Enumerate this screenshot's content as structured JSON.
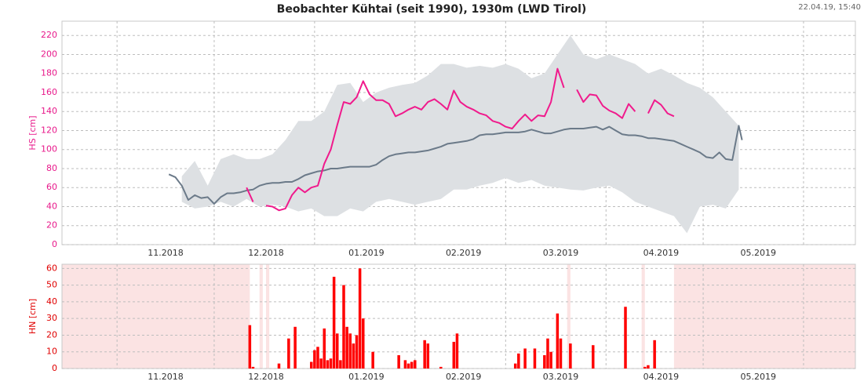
{
  "chart_data": [
    {
      "type": "line",
      "title": "Beobachter Kühtai (seit 1990), 1930m (LWD Tirol)",
      "timestamp": "22.04.19, 15:40",
      "ylabel": "HS [cm]",
      "axis_color": "#e8198b",
      "xlim": [
        -17,
        228
      ],
      "xticks": [
        {
          "value": 15,
          "label": "11.2018"
        },
        {
          "value": 46,
          "label": "12.2018"
        },
        {
          "value": 77,
          "label": "01.2019"
        },
        {
          "value": 107,
          "label": "02.2019"
        },
        {
          "value": 137,
          "label": "03.2019"
        },
        {
          "value": 168,
          "label": "04.2019"
        },
        {
          "value": 198,
          "label": "05.2019"
        }
      ],
      "xgrid": [
        0,
        30,
        61,
        92,
        120,
        151,
        181,
        212
      ],
      "ylim": [
        0,
        235
      ],
      "yticks": [
        0,
        20,
        40,
        60,
        80,
        100,
        120,
        140,
        160,
        180,
        200,
        220
      ],
      "grid": true,
      "band": {
        "color": "#dde0e3",
        "x": [
          20,
          24,
          28,
          32,
          36,
          40,
          44,
          48,
          52,
          56,
          60,
          64,
          68,
          72,
          76,
          80,
          84,
          88,
          92,
          96,
          100,
          104,
          108,
          112,
          116,
          120,
          124,
          128,
          132,
          136,
          140,
          144,
          148,
          152,
          156,
          160,
          164,
          168,
          172,
          176,
          180,
          184,
          188,
          192
        ],
        "upper": [
          72,
          88,
          62,
          90,
          95,
          90,
          90,
          95,
          110,
          130,
          130,
          140,
          168,
          170,
          150,
          160,
          165,
          168,
          170,
          178,
          190,
          190,
          186,
          188,
          186,
          190,
          185,
          175,
          180,
          200,
          220,
          200,
          195,
          200,
          195,
          190,
          180,
          185,
          178,
          170,
          165,
          155,
          140,
          125
        ],
        "lower": [
          45,
          38,
          40,
          45,
          40,
          48,
          40,
          42,
          40,
          35,
          38,
          30,
          30,
          38,
          35,
          45,
          48,
          45,
          42,
          45,
          48,
          58,
          58,
          62,
          65,
          70,
          65,
          68,
          62,
          60,
          58,
          57,
          60,
          62,
          55,
          45,
          40,
          35,
          30,
          12,
          40,
          42,
          38,
          58
        ]
      },
      "series": [
        {
          "color": "#6b7a89",
          "x": [
            16,
            18,
            20,
            22,
            24,
            26,
            28,
            30,
            32,
            34,
            36,
            38,
            40,
            42,
            44,
            46,
            48,
            50,
            52,
            54,
            56,
            58,
            60,
            62,
            64,
            66,
            68,
            70,
            72,
            74,
            76,
            78,
            80,
            82,
            84,
            86,
            88,
            90,
            92,
            94,
            96,
            98,
            100,
            102,
            104,
            106,
            108,
            110,
            112,
            114,
            116,
            118,
            120,
            122,
            124,
            126,
            128,
            130,
            132,
            134,
            136,
            138,
            140,
            142,
            144,
            146,
            148,
            150,
            152,
            154,
            156,
            158,
            160,
            162,
            164,
            166,
            168,
            170,
            172,
            174,
            176,
            178,
            180,
            182,
            184,
            186,
            188,
            190,
            192,
            193
          ],
          "values": [
            74,
            71,
            62,
            47,
            52,
            49,
            50,
            43,
            50,
            54,
            54,
            55,
            57,
            58,
            62,
            64,
            65,
            65,
            66,
            66,
            69,
            73,
            75,
            77,
            78,
            80,
            80,
            81,
            82,
            82,
            82,
            82,
            84,
            89,
            93,
            95,
            96,
            97,
            97,
            98,
            99,
            101,
            103,
            106,
            107,
            108,
            109,
            111,
            115,
            116,
            116,
            117,
            118,
            118,
            118,
            119,
            121,
            119,
            117,
            117,
            119,
            121,
            122,
            122,
            122,
            123,
            124,
            121,
            124,
            120,
            116,
            115,
            115,
            114,
            112,
            112,
            111,
            110,
            109,
            106,
            103,
            100,
            97,
            92,
            91,
            97,
            90,
            89,
            125,
            110
          ]
        },
        {
          "color": "#f01a8c",
          "x": [
            40,
            42,
            44,
            46,
            48,
            50,
            52,
            54,
            56,
            58,
            60,
            62,
            64,
            66,
            68,
            70,
            72,
            74,
            76,
            78,
            80,
            82,
            84,
            86,
            88,
            90,
            92,
            94,
            96,
            98,
            100,
            102,
            104,
            106,
            108,
            110,
            112,
            114,
            116,
            118,
            120,
            122,
            124,
            126,
            128,
            130,
            132,
            134,
            136,
            138,
            140,
            142,
            144,
            146,
            148,
            150,
            152,
            154,
            156,
            158,
            160,
            162,
            164,
            166,
            168,
            170,
            172
          ],
          "values": [
            60,
            45,
            null,
            41,
            40,
            36,
            38,
            52,
            60,
            55,
            60,
            62,
            85,
            100,
            126,
            150,
            148,
            155,
            172,
            158,
            152,
            152,
            148,
            135,
            138,
            142,
            145,
            142,
            150,
            153,
            148,
            142,
            162,
            150,
            145,
            142,
            138,
            136,
            130,
            128,
            124,
            122,
            130,
            137,
            130,
            136,
            135,
            150,
            185,
            165,
            null,
            163,
            150,
            158,
            157,
            146,
            141,
            138,
            133,
            148,
            140,
            null,
            138,
            152,
            147,
            138,
            135
          ]
        }
      ]
    },
    {
      "type": "bar",
      "ylabel": "HN [cm]",
      "axis_color": "#e00000",
      "color": "#ff0000",
      "xlim": [
        -17,
        228
      ],
      "xticks": [
        {
          "value": 15,
          "label": "11.2018"
        },
        {
          "value": 46,
          "label": "12.2018"
        },
        {
          "value": 77,
          "label": "01.2019"
        },
        {
          "value": 107,
          "label": "02.2019"
        },
        {
          "value": 137,
          "label": "03.2019"
        },
        {
          "value": 168,
          "label": "04.2019"
        },
        {
          "value": 198,
          "label": "05.2019"
        }
      ],
      "xgrid": [
        0,
        30,
        61,
        92,
        120,
        151,
        181,
        212
      ],
      "ylim": [
        0,
        62.5
      ],
      "yticks": [
        0,
        10,
        20,
        30,
        40,
        50,
        60
      ],
      "grid": true,
      "nodata_color": "#fbe3e3",
      "nodata": [
        [
          -17,
          41
        ],
        [
          44,
          45
        ],
        [
          46,
          47
        ],
        [
          139,
          140
        ],
        [
          162,
          163
        ],
        [
          172,
          228
        ]
      ],
      "x": [
        41,
        42,
        50,
        53,
        55,
        60,
        61,
        62,
        63,
        64,
        65,
        66,
        67,
        68,
        69,
        70,
        71,
        72,
        73,
        74,
        75,
        76,
        79,
        87,
        89,
        90,
        91,
        92,
        95,
        96,
        100,
        104,
        105,
        123,
        124,
        126,
        129,
        132,
        133,
        134,
        136,
        137,
        140,
        147,
        157,
        163,
        164,
        166
      ],
      "values": [
        26,
        1,
        3,
        18,
        25,
        4,
        11,
        13,
        6,
        24,
        5,
        6,
        55,
        21,
        5,
        50,
        25,
        21,
        15,
        20,
        60,
        30,
        10,
        8,
        5,
        3,
        4,
        5,
        17,
        15,
        1,
        16,
        21,
        3,
        9,
        12,
        12,
        8,
        18,
        10,
        33,
        18,
        15,
        14,
        37,
        1,
        2,
        17
      ]
    }
  ]
}
